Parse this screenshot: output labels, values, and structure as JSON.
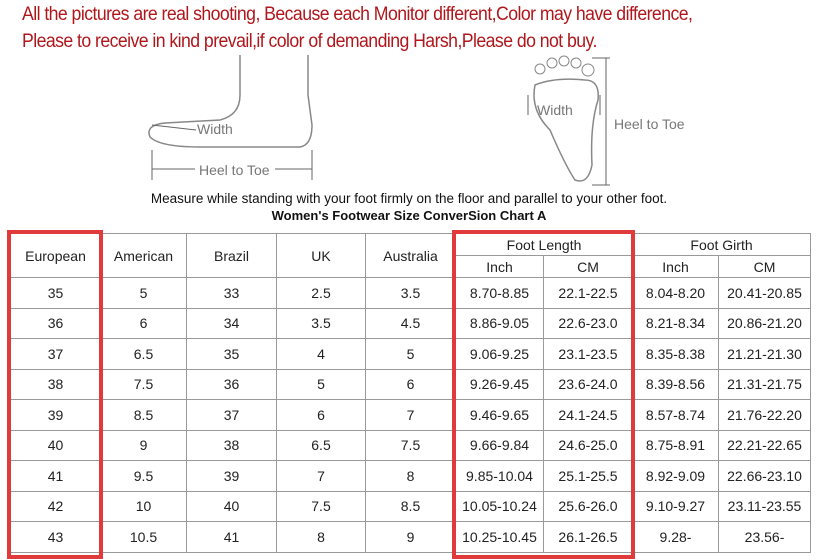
{
  "notice": [
    "All the pictures are real shooting, Because each Monitor different,Color may have difference,",
    "Please to receive in kind prevail,if color of demanding Harsh,Please do not buy."
  ],
  "illustration": {
    "side_width": "Width",
    "side_heel_to_toe": "Heel to Toe",
    "top_width": "Width",
    "top_heel_to_toe": "Heel to Toe"
  },
  "measure_text": "Measure while standing with your foot firmly on the floor and parallel to your other foot.",
  "chart_title": "Women's Footwear Size ConverSion Chart A",
  "headers": {
    "european": "European",
    "american": "American",
    "brazil": "Brazil",
    "uk": "UK",
    "australia": "Australia",
    "foot_length": "Foot Length",
    "foot_girth": "Foot Girth",
    "inch": "Inch",
    "cm": "CM"
  },
  "rows": [
    [
      "35",
      "5",
      "33",
      "2.5",
      "3.5",
      "8.70-8.85",
      "22.1-22.5",
      "8.04-8.20",
      "20.41-20.85"
    ],
    [
      "36",
      "6",
      "34",
      "3.5",
      "4.5",
      "8.86-9.05",
      "22.6-23.0",
      "8.21-8.34",
      "20.86-21.20"
    ],
    [
      "37",
      "6.5",
      "35",
      "4",
      "5",
      "9.06-9.25",
      "23.1-23.5",
      "8.35-8.38",
      "21.21-21.30"
    ],
    [
      "38",
      "7.5",
      "36",
      "5",
      "6",
      "9.26-9.45",
      "23.6-24.0",
      "8.39-8.56",
      "21.31-21.75"
    ],
    [
      "39",
      "8.5",
      "37",
      "6",
      "7",
      "9.46-9.65",
      "24.1-24.5",
      "8.57-8.74",
      "21.76-22.20"
    ],
    [
      "40",
      "9",
      "38",
      "6.5",
      "7.5",
      "9.66-9.84",
      "24.6-25.0",
      "8.75-8.91",
      "22.21-22.65"
    ],
    [
      "41",
      "9.5",
      "39",
      "7",
      "8",
      "9.85-10.04",
      "25.1-25.5",
      "8.92-9.09",
      "22.66-23.10"
    ],
    [
      "42",
      "10",
      "40",
      "7.5",
      "8.5",
      "10.05-10.24",
      "25.6-26.0",
      "9.10-9.27",
      "23.11-23.55"
    ],
    [
      "43",
      "10.5",
      "41",
      "8",
      "9",
      "10.25-10.45",
      "26.1-26.5",
      "9.28-",
      "23.56-"
    ]
  ],
  "highlight_color": "#e03a3a",
  "notice_color": "#b0171c"
}
